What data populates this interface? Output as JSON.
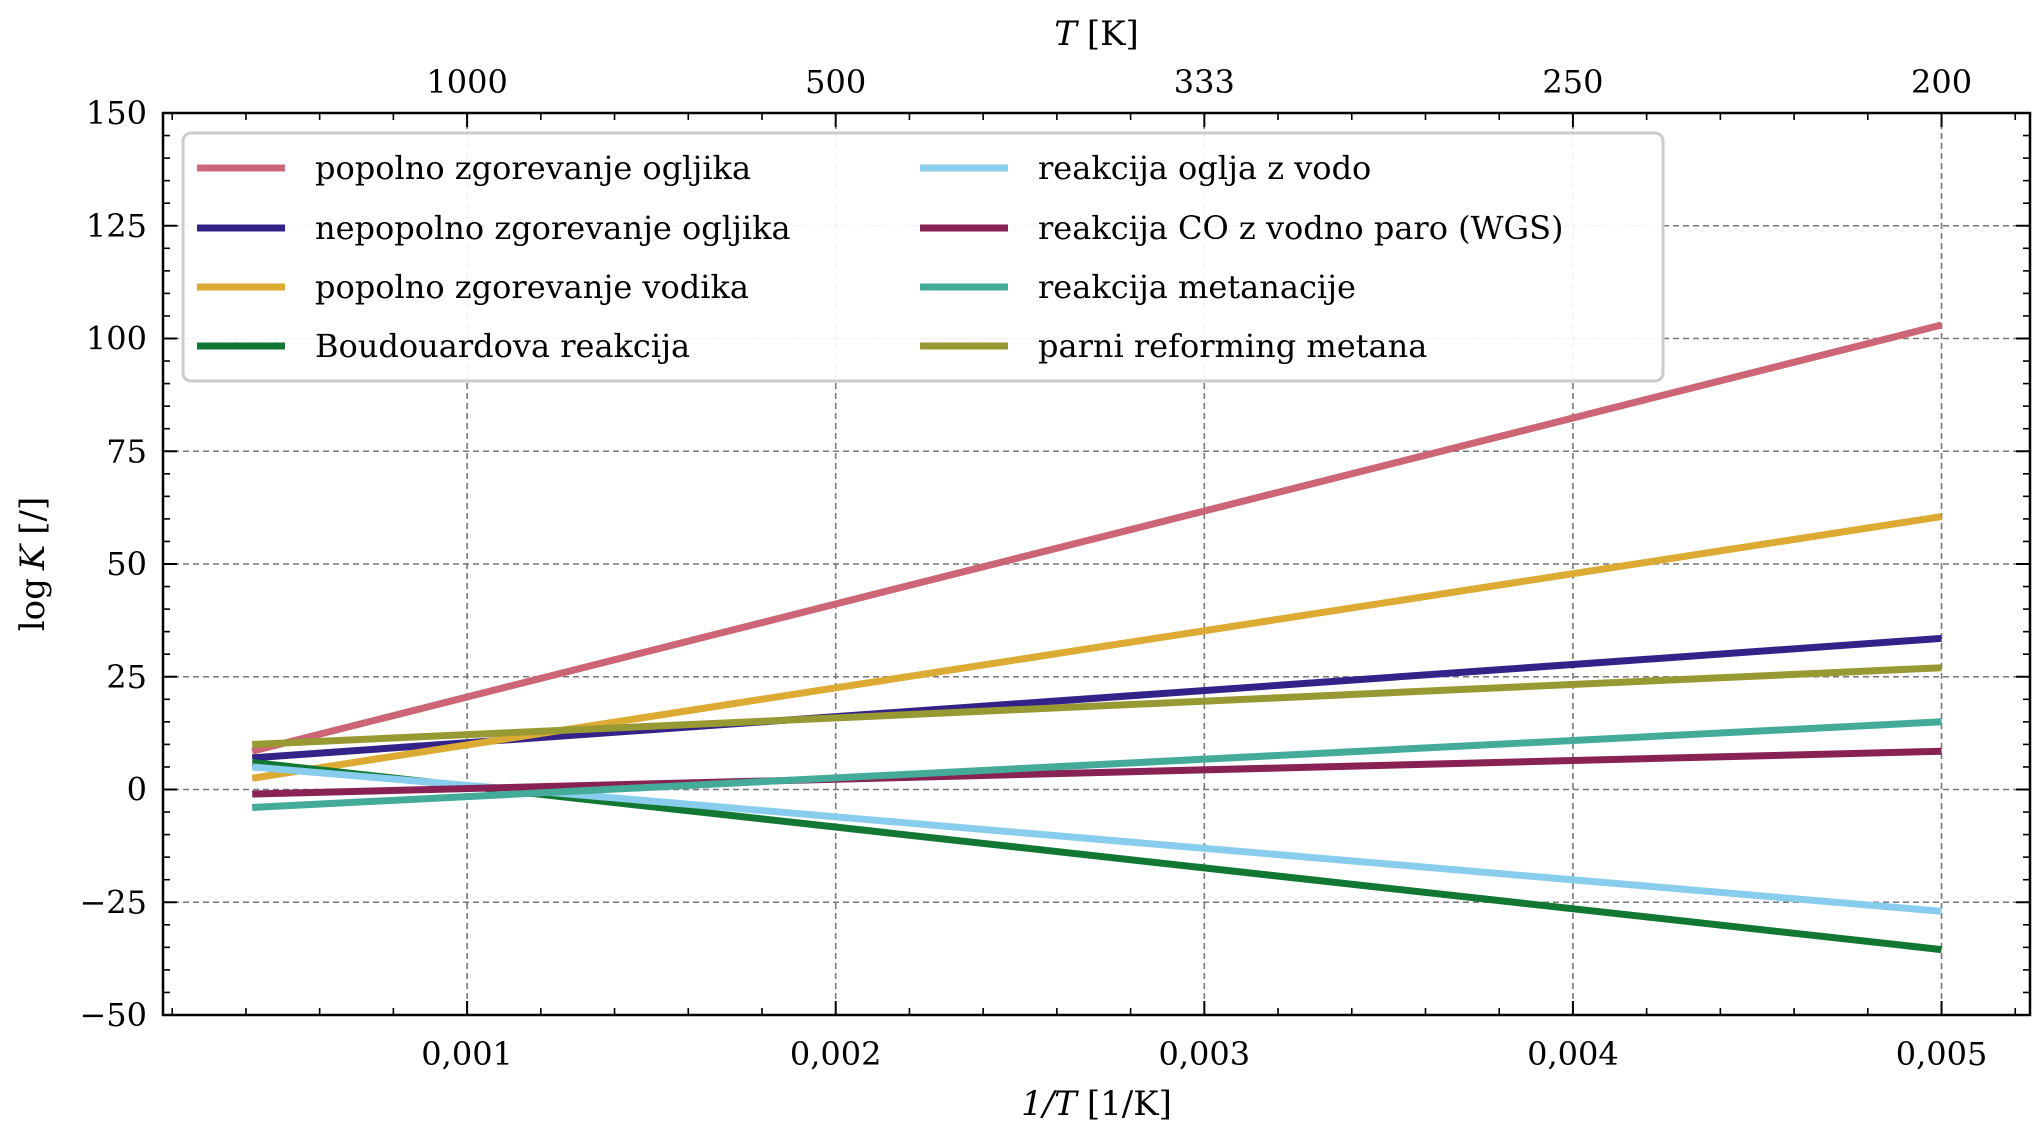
{
  "chart_data": {
    "type": "line",
    "xlabel_main": "1/T",
    "xlabel_unit": "[1/K]",
    "ylabel_main": "log",
    "ylabel_var": "K",
    "ylabel_unit": "[/]",
    "top_xlabel_var": "T",
    "top_xlabel_unit": "[K]",
    "xlim": [
      0.000175,
      0.00524
    ],
    "ylim": [
      -50,
      150
    ],
    "xticks": [
      {
        "value": 0.001,
        "label": "0,001"
      },
      {
        "value": 0.002,
        "label": "0,002"
      },
      {
        "value": 0.003,
        "label": "0,003"
      },
      {
        "value": 0.004,
        "label": "0,004"
      },
      {
        "value": 0.005,
        "label": "0,005"
      }
    ],
    "yticks": [
      {
        "value": 150,
        "label": "150"
      },
      {
        "value": 125,
        "label": "125"
      },
      {
        "value": 100,
        "label": "100"
      },
      {
        "value": 75,
        "label": "75"
      },
      {
        "value": 50,
        "label": "50"
      },
      {
        "value": 25,
        "label": "25"
      },
      {
        "value": 0,
        "label": "0"
      },
      {
        "value": -25,
        "label": "−25"
      },
      {
        "value": -50,
        "label": "−50"
      }
    ],
    "top_xticks": [
      {
        "value": 0.001,
        "label": "1000"
      },
      {
        "value": 0.002,
        "label": "500"
      },
      {
        "value": 0.003,
        "label": "333"
      },
      {
        "value": 0.004,
        "label": "250"
      },
      {
        "value": 0.005,
        "label": "200"
      }
    ],
    "grid": true,
    "legend_position": "top-left",
    "series": [
      {
        "name": "popolno zgorevanje ogljika",
        "color": "#cc6677",
        "x": [
          0.000417,
          0.005
        ],
        "y": [
          8.5,
          103
        ]
      },
      {
        "name": "nepopolno zgorevanje ogljika",
        "color": "#332288",
        "x": [
          0.000417,
          0.005
        ],
        "y": [
          7,
          33.5
        ]
      },
      {
        "name": "popolno zgorevanje vodika",
        "color": "#ddaa33",
        "x": [
          0.000417,
          0.005
        ],
        "y": [
          2.5,
          60.5
        ]
      },
      {
        "name": "Boudouardova reakcija",
        "color": "#117733",
        "x": [
          0.000417,
          0.005
        ],
        "y": [
          6,
          -35.5
        ]
      },
      {
        "name": "reakcija oglja z vodo",
        "color": "#88ccee",
        "x": [
          0.000417,
          0.005
        ],
        "y": [
          5,
          -27
        ]
      },
      {
        "name": "reakcija CO z vodno paro (WGS)",
        "color": "#882255",
        "x": [
          0.000417,
          0.005
        ],
        "y": [
          -1,
          8.5
        ]
      },
      {
        "name": "reakcija metanacije",
        "color": "#44aa99",
        "x": [
          0.000417,
          0.005
        ],
        "y": [
          -4,
          15
        ]
      },
      {
        "name": "parni reforming metana",
        "color": "#999933",
        "x": [
          0.000417,
          0.005
        ],
        "y": [
          10,
          27
        ]
      }
    ]
  }
}
